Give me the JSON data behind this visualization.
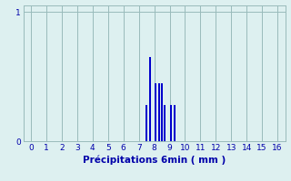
{
  "xlabel": "Précipitations 6min ( mm )",
  "xlim": [
    -0.5,
    16.5
  ],
  "ylim": [
    0,
    1.05
  ],
  "yticks": [
    0,
    1
  ],
  "xticks": [
    0,
    1,
    2,
    3,
    4,
    5,
    6,
    7,
    8,
    9,
    10,
    11,
    12,
    13,
    14,
    15,
    16
  ],
  "bar_positions": [
    7.5,
    7.7,
    8.1,
    8.3,
    8.5,
    8.7,
    9.1,
    9.3
  ],
  "bar_heights": [
    0.28,
    0.65,
    0.45,
    0.45,
    0.45,
    0.28,
    0.28,
    0.28
  ],
  "bar_color": "#0000cc",
  "background_color": "#ddf0f0",
  "grid_color": "#99bbbb",
  "tick_color": "#0000aa",
  "label_color": "#0000aa",
  "bar_width": 0.12
}
